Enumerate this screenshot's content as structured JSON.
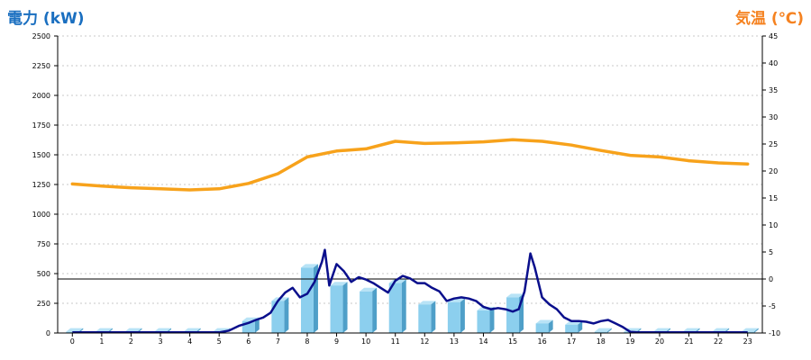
{
  "colors": {
    "power_title": "#1a6fc0",
    "temp_title": "#f58220",
    "bar_front": "#8ccfee",
    "bar_side": "#4f9fc8",
    "bar_top": "#b8e3f6",
    "power_line": "#0a0f8c",
    "temp_line": "#f7a21b",
    "grid": "#c8c8c8",
    "axis": "#000000"
  },
  "chart_data": {
    "type": "bar",
    "title_left": "電力 (kW)",
    "title_right": "気温 (℃)",
    "categories": [
      "0",
      "1",
      "2",
      "3",
      "4",
      "5",
      "6",
      "7",
      "8",
      "9",
      "10",
      "11",
      "12",
      "13",
      "14",
      "15",
      "16",
      "17",
      "18",
      "19",
      "20",
      "21",
      "22",
      "23"
    ],
    "y_left": {
      "min": 0,
      "max": 2500,
      "step": 250,
      "ticks": [
        "0",
        "250",
        "500",
        "750",
        "1000",
        "1250",
        "1500",
        "1750",
        "2000",
        "2250",
        "2500"
      ]
    },
    "y_right": {
      "min": -10,
      "max": 45,
      "step": 5,
      "ticks": [
        "-10",
        "-5",
        "0",
        "5",
        "10",
        "15",
        "20",
        "25",
        "30",
        "35",
        "40",
        "45"
      ]
    },
    "reference_line": {
      "axis": "right",
      "value": 0
    },
    "grid": true,
    "series": [
      {
        "type": "bar3d",
        "axis": "left",
        "values": [
          10,
          10,
          10,
          10,
          10,
          10,
          100,
          270,
          550,
          400,
          350,
          420,
          240,
          260,
          190,
          300,
          80,
          70,
          10,
          10,
          10,
          10,
          10,
          10
        ]
      },
      {
        "type": "line",
        "axis": "left",
        "color": "power_line",
        "points": [
          [
            0,
            5
          ],
          [
            1,
            5
          ],
          [
            2,
            5
          ],
          [
            3,
            5
          ],
          [
            4,
            5
          ],
          [
            5,
            5
          ],
          [
            5.33,
            20
          ],
          [
            5.67,
            60
          ],
          [
            6,
            85
          ],
          [
            6.25,
            110
          ],
          [
            6.5,
            130
          ],
          [
            6.75,
            170
          ],
          [
            7,
            270
          ],
          [
            7.25,
            340
          ],
          [
            7.5,
            380
          ],
          [
            7.75,
            300
          ],
          [
            8,
            330
          ],
          [
            8.25,
            430
          ],
          [
            8.5,
            600
          ],
          [
            8.6,
            700
          ],
          [
            8.75,
            400
          ],
          [
            9,
            580
          ],
          [
            9.25,
            520
          ],
          [
            9.5,
            430
          ],
          [
            9.75,
            470
          ],
          [
            10,
            450
          ],
          [
            10.25,
            420
          ],
          [
            10.5,
            380
          ],
          [
            10.75,
            340
          ],
          [
            11,
            440
          ],
          [
            11.25,
            480
          ],
          [
            11.5,
            460
          ],
          [
            11.75,
            420
          ],
          [
            12,
            420
          ],
          [
            12.25,
            380
          ],
          [
            12.5,
            350
          ],
          [
            12.75,
            270
          ],
          [
            13,
            290
          ],
          [
            13.25,
            300
          ],
          [
            13.5,
            290
          ],
          [
            13.75,
            270
          ],
          [
            14,
            220
          ],
          [
            14.25,
            200
          ],
          [
            14.5,
            210
          ],
          [
            14.75,
            200
          ],
          [
            15,
            180
          ],
          [
            15.2,
            200
          ],
          [
            15.4,
            350
          ],
          [
            15.55,
            590
          ],
          [
            15.6,
            670
          ],
          [
            15.75,
            550
          ],
          [
            16,
            300
          ],
          [
            16.25,
            240
          ],
          [
            16.5,
            200
          ],
          [
            16.75,
            130
          ],
          [
            17,
            100
          ],
          [
            17.25,
            100
          ],
          [
            17.5,
            95
          ],
          [
            17.75,
            80
          ],
          [
            18,
            100
          ],
          [
            18.25,
            110
          ],
          [
            18.5,
            80
          ],
          [
            18.75,
            50
          ],
          [
            19,
            10
          ],
          [
            19.25,
            5
          ],
          [
            20,
            5
          ],
          [
            21,
            5
          ],
          [
            22,
            5
          ],
          [
            23,
            5
          ]
        ]
      },
      {
        "type": "line",
        "axis": "right",
        "color": "temp_line",
        "values": [
          17.6,
          17.2,
          16.9,
          16.7,
          16.5,
          16.7,
          17.7,
          19.5,
          22.6,
          23.7,
          24.1,
          25.5,
          25.1,
          25.2,
          25.4,
          25.8,
          25.5,
          24.8,
          23.8,
          22.9,
          22.6,
          21.9,
          21.5,
          21.3
        ]
      }
    ]
  }
}
